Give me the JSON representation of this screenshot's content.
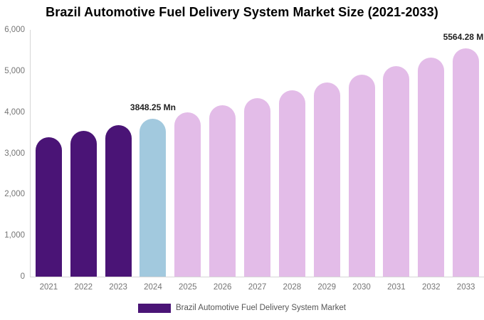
{
  "chart_data": {
    "type": "bar",
    "title": "Brazil Automotive Fuel Delivery System Market Size (2021-2033)",
    "categories": [
      "2021",
      "2022",
      "2023",
      "2024",
      "2025",
      "2026",
      "2027",
      "2028",
      "2029",
      "2030",
      "2031",
      "2032",
      "2033"
    ],
    "values": [
      3403,
      3546,
      3694,
      3848.25,
      4009,
      4177,
      4351,
      4533,
      4723,
      4920,
      5126,
      5340,
      5564.28
    ],
    "unit": "Mn",
    "value_labels": {
      "2024": "3848.25 Mn",
      "2033": "5564.28 Mn"
    },
    "ylim": [
      0,
      6000
    ],
    "yticks": [
      0,
      1000,
      2000,
      3000,
      4000,
      5000,
      6000
    ],
    "ytick_labels": [
      "0",
      "1,000",
      "2,000",
      "3,000",
      "4,000",
      "5,000",
      "6,000"
    ],
    "grid": false,
    "legend_position": "bottom",
    "bar_colors": [
      "#4A1476",
      "#4A1476",
      "#4A1476",
      "#A2C9DE",
      "#E3BCE8",
      "#E3BCE8",
      "#E3BCE8",
      "#E3BCE8",
      "#E3BCE8",
      "#E3BCE8",
      "#E3BCE8",
      "#E3BCE8",
      "#E3BCE8"
    ],
    "colors": {
      "historical_purple": "#4A1476",
      "current_year_blue": "#A2C9DE",
      "forecast_pink": "#E3BCE8",
      "axis_line": "#d6d6d6",
      "tick_text": "#757575"
    },
    "legend": {
      "label": "Brazil Automotive Fuel Delivery System Market",
      "swatch_color": "#4A1476"
    }
  }
}
